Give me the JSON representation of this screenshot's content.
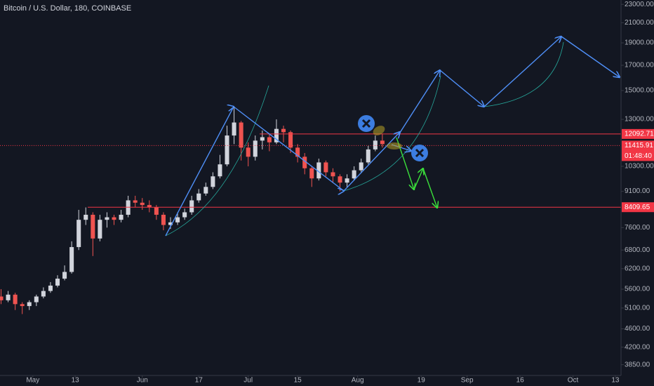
{
  "chart_data": {
    "type": "candlestick",
    "title": "Bitcoin / U.S. Dollar, 180, COINBASE",
    "log": true,
    "grid": false,
    "up_color": "#d1d4dc",
    "down_color": "#ef5350",
    "ylim": [
      3650,
      23500
    ],
    "yticks": [
      {
        "value": 23000,
        "label": "23000.00"
      },
      {
        "value": 21000,
        "label": "21000.00"
      },
      {
        "value": 19000,
        "label": "19000.00"
      },
      {
        "value": 17000,
        "label": "17000.00"
      },
      {
        "value": 15000,
        "label": "15000.00"
      },
      {
        "value": 13000,
        "label": "13000.00"
      },
      {
        "value": 10300,
        "label": "10300.00"
      },
      {
        "value": 9100,
        "label": "9100.00"
      },
      {
        "value": 7600,
        "label": "7600.00"
      },
      {
        "value": 6800,
        "label": "6800.00"
      },
      {
        "value": 6200,
        "label": "6200.00"
      },
      {
        "value": 5600,
        "label": "5600.00"
      },
      {
        "value": 5100,
        "label": "5100.00"
      },
      {
        "value": 4600,
        "label": "4600.00"
      },
      {
        "value": 4200,
        "label": "4200.00"
      },
      {
        "value": 3850,
        "label": "3850.00"
      }
    ],
    "xlim": [
      -9.3,
      166.6
    ],
    "xticks": [
      {
        "value": 0,
        "label": "May"
      },
      {
        "value": 12,
        "label": "13"
      },
      {
        "value": 31,
        "label": "Jun"
      },
      {
        "value": 47,
        "label": "17"
      },
      {
        "value": 61,
        "label": "Jul"
      },
      {
        "value": 75,
        "label": "15"
      },
      {
        "value": 92,
        "label": "Aug"
      },
      {
        "value": 110,
        "label": "19"
      },
      {
        "value": 123,
        "label": "Sep"
      },
      {
        "value": 138,
        "label": "16"
      },
      {
        "value": 153,
        "label": "Oct"
      },
      {
        "value": 165,
        "label": "13"
      }
    ],
    "x": [
      -9,
      -7,
      -5,
      -3,
      -1,
      1,
      3,
      5,
      7,
      9,
      11,
      13,
      15,
      17,
      19,
      21,
      23,
      25,
      27,
      29,
      31,
      33,
      35,
      37,
      39,
      41,
      43,
      45,
      47,
      49,
      51,
      53,
      55,
      57,
      59,
      61,
      63,
      65,
      67,
      69,
      71,
      73,
      75,
      77,
      79,
      81,
      83,
      85,
      87,
      89,
      91,
      93,
      95,
      97,
      99
    ],
    "ohlc": [
      [
        5400,
        5600,
        5200,
        5300
      ],
      [
        5300,
        5550,
        5250,
        5450
      ],
      [
        5450,
        5500,
        5050,
        5200
      ],
      [
        5200,
        5250,
        4950,
        5150
      ],
      [
        5150,
        5300,
        5050,
        5250
      ],
      [
        5250,
        5450,
        5150,
        5400
      ],
      [
        5400,
        5650,
        5350,
        5550
      ],
      [
        5550,
        5800,
        5500,
        5700
      ],
      [
        5700,
        6000,
        5650,
        5900
      ],
      [
        5900,
        6300,
        5850,
        6100
      ],
      [
        6100,
        7100,
        6050,
        6900
      ],
      [
        6900,
        8300,
        6800,
        7900
      ],
      [
        7900,
        8400,
        7700,
        8100
      ],
      [
        8100,
        8200,
        6600,
        7200
      ],
      [
        7200,
        8100,
        7100,
        7900
      ],
      [
        7900,
        8200,
        7600,
        8000
      ],
      [
        8000,
        8100,
        7700,
        7900
      ],
      [
        7900,
        8300,
        7800,
        8100
      ],
      [
        8100,
        8900,
        8000,
        8700
      ],
      [
        8700,
        8900,
        8400,
        8600
      ],
      [
        8600,
        8800,
        8300,
        8500
      ],
      [
        8500,
        8700,
        8200,
        8400
      ],
      [
        8400,
        8500,
        7900,
        8100
      ],
      [
        8100,
        8200,
        7500,
        7700
      ],
      [
        7700,
        8000,
        7550,
        7800
      ],
      [
        7800,
        8200,
        7700,
        8000
      ],
      [
        8000,
        8350,
        7900,
        8200
      ],
      [
        8200,
        8900,
        8100,
        8700
      ],
      [
        8700,
        9200,
        8600,
        9000
      ],
      [
        9000,
        9500,
        8900,
        9300
      ],
      [
        9300,
        10000,
        9200,
        9800
      ],
      [
        9800,
        10900,
        9700,
        10400
      ],
      [
        10400,
        12600,
        10300,
        12000
      ],
      [
        12000,
        13800,
        11500,
        12800
      ],
      [
        12800,
        12900,
        10600,
        11300
      ],
      [
        11300,
        11600,
        10300,
        10800
      ],
      [
        10800,
        12000,
        10600,
        11700
      ],
      [
        11700,
        12300,
        11200,
        11900
      ],
      [
        11900,
        12100,
        11100,
        11600
      ],
      [
        11600,
        13000,
        11500,
        12400
      ],
      [
        12400,
        12600,
        11600,
        12200
      ],
      [
        12200,
        12300,
        11000,
        11300
      ],
      [
        11300,
        11500,
        10500,
        10800
      ],
      [
        10800,
        11000,
        9900,
        10200
      ],
      [
        10200,
        10300,
        9300,
        9700
      ],
      [
        9700,
        10700,
        9600,
        10500
      ],
      [
        10500,
        10600,
        9800,
        10000
      ],
      [
        10000,
        10200,
        9500,
        9800
      ],
      [
        9800,
        9900,
        9100,
        9500
      ],
      [
        9500,
        9900,
        9300,
        9700
      ],
      [
        9700,
        10300,
        9600,
        10100
      ],
      [
        10100,
        10700,
        10000,
        10500
      ],
      [
        10500,
        11400,
        10400,
        11200
      ],
      [
        11200,
        12000,
        11100,
        11700
      ],
      [
        11700,
        12100,
        11300,
        11500
      ]
    ],
    "price_lines": [
      {
        "value": 12092.71,
        "color": "#f23645",
        "style": "solid"
      },
      {
        "value": 11415.91,
        "color": "#f23645",
        "style": "dotted"
      },
      {
        "value": 8409.65,
        "color": "#f23645",
        "style": "solid"
      }
    ],
    "countdown": "01:48:40"
  }
}
